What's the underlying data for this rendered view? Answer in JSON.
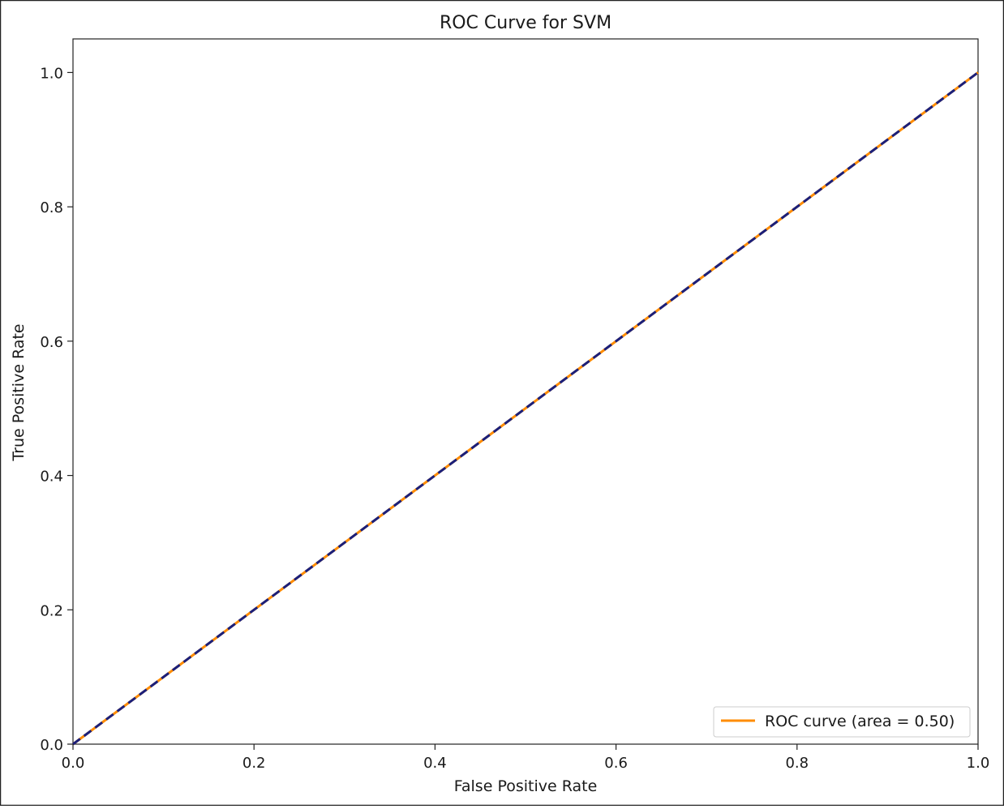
{
  "chart_data": {
    "type": "line",
    "title": "ROC Curve for SVM",
    "xlabel": "False Positive Rate",
    "ylabel": "True Positive Rate",
    "xlim": [
      0.0,
      1.0
    ],
    "ylim": [
      0.0,
      1.05
    ],
    "x_ticks": [
      "0.0",
      "0.2",
      "0.4",
      "0.6",
      "0.8",
      "1.0"
    ],
    "y_ticks": [
      "0.0",
      "0.2",
      "0.4",
      "0.6",
      "0.8",
      "1.0"
    ],
    "grid": false,
    "legend_position": "lower-right",
    "series": [
      {
        "name": "ROC curve (area = 0.50)",
        "color": "#ff8c00",
        "style": "solid",
        "x": [
          0.0,
          1.0
        ],
        "y": [
          0.0,
          1.0
        ]
      },
      {
        "color": "#1b1f7a",
        "style": "dashed",
        "x": [
          0.0,
          1.0
        ],
        "y": [
          0.0,
          1.0
        ]
      }
    ]
  }
}
